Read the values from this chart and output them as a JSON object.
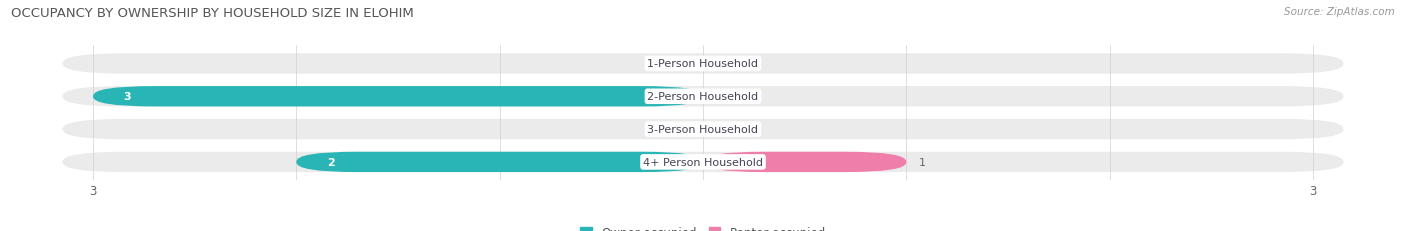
{
  "title": "OCCUPANCY BY OWNERSHIP BY HOUSEHOLD SIZE IN ELOHIM",
  "source": "Source: ZipAtlas.com",
  "categories": [
    "1-Person Household",
    "2-Person Household",
    "3-Person Household",
    "4+ Person Household"
  ],
  "owner_values": [
    0,
    3,
    0,
    2
  ],
  "renter_values": [
    0,
    0,
    0,
    1
  ],
  "owner_color": "#29b5b5",
  "renter_color": "#f07eaa",
  "bar_bg_color": "#ebebeb",
  "axis_max": 3,
  "title_fontsize": 9.5,
  "label_fontsize": 8,
  "tick_fontsize": 8.5,
  "legend_fontsize": 8.5,
  "source_fontsize": 7.5,
  "figsize": [
    14.06,
    2.32
  ],
  "dpi": 100
}
